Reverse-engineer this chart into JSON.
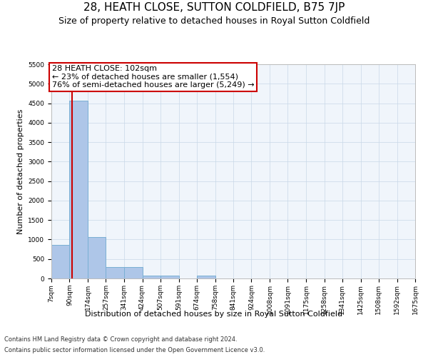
{
  "title": "28, HEATH CLOSE, SUTTON COLDFIELD, B75 7JP",
  "subtitle": "Size of property relative to detached houses in Royal Sutton Coldfield",
  "xlabel": "Distribution of detached houses by size in Royal Sutton Coldfield",
  "ylabel": "Number of detached properties",
  "footnote1": "Contains HM Land Registry data © Crown copyright and database right 2024.",
  "footnote2": "Contains public sector information licensed under the Open Government Licence v3.0.",
  "annotation_title": "28 HEATH CLOSE: 102sqm",
  "annotation_line1": "← 23% of detached houses are smaller (1,554)",
  "annotation_line2": "76% of semi-detached houses are larger (5,249) →",
  "property_size": 102,
  "bar_edges": [
    7,
    90,
    174,
    257,
    341,
    424,
    507,
    591,
    674,
    758,
    841,
    924,
    1008,
    1091,
    1175,
    1258,
    1341,
    1425,
    1508,
    1592,
    1675
  ],
  "bar_labels": [
    "7sqm",
    "90sqm",
    "174sqm",
    "257sqm",
    "341sqm",
    "424sqm",
    "507sqm",
    "591sqm",
    "674sqm",
    "758sqm",
    "841sqm",
    "924sqm",
    "1008sqm",
    "1091sqm",
    "1175sqm",
    "1258sqm",
    "1341sqm",
    "1425sqm",
    "1508sqm",
    "1592sqm",
    "1675sqm"
  ],
  "bar_values": [
    870,
    4560,
    1060,
    300,
    290,
    80,
    65,
    0,
    70,
    0,
    0,
    0,
    0,
    0,
    0,
    0,
    0,
    0,
    0,
    0
  ],
  "bar_color": "#aec6e8",
  "bar_edge_color": "#7aafd4",
  "vline_color": "#cc0000",
  "vline_x": 102,
  "ylim": [
    0,
    5500
  ],
  "yticks": [
    0,
    500,
    1000,
    1500,
    2000,
    2500,
    3000,
    3500,
    4000,
    4500,
    5000,
    5500
  ],
  "grid_color": "#c8d8e8",
  "bg_color": "#f0f5fb",
  "title_fontsize": 11,
  "subtitle_fontsize": 9,
  "annot_fontsize": 8,
  "axis_fontsize": 8,
  "tick_fontsize": 6.5,
  "footnote_fontsize": 6
}
